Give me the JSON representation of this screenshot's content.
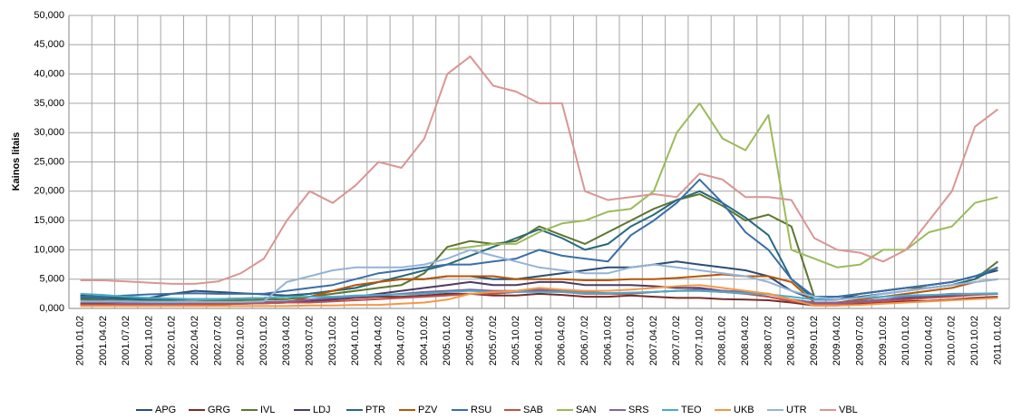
{
  "chart_data": {
    "type": "line",
    "y_label": "Kainos litais",
    "categories": [
      "2001.01.02",
      "2001.04.02",
      "2001.07.02",
      "2001.10.02",
      "2002.01.02",
      "2002.04.02",
      "2002.07.02",
      "2002.10.02",
      "2003.01.02",
      "2003.04.02",
      "2003.07.02",
      "2003.10.02",
      "2004.01.02",
      "2004.04.02",
      "2004.07.02",
      "2004.10.02",
      "2005.01.02",
      "2005.04.02",
      "2005.07.02",
      "2005.10.02",
      "2006.01.02",
      "2006.04.02",
      "2006.07.02",
      "2006.10.02",
      "2007.01.02",
      "2007.04.02",
      "2007.07.02",
      "2007.10.02",
      "2008.01.02",
      "2008.04.02",
      "2008.07.02",
      "2008.10.02",
      "2009.01.02",
      "2009.04.02",
      "2009.07.02",
      "2009.10.02",
      "2010.01.02",
      "2010.04.02",
      "2010.07.02",
      "2010.10.02",
      "2011.01.02"
    ],
    "ylim": [
      0,
      50
    ],
    "yticks": [
      {
        "value": 0,
        "label": "0,000"
      },
      {
        "value": 5,
        "label": "5,000"
      },
      {
        "value": 10,
        "label": "10,000"
      },
      {
        "value": 15,
        "label": "15,000"
      },
      {
        "value": 20,
        "label": "20,000"
      },
      {
        "value": 25,
        "label": "25,000"
      },
      {
        "value": 30,
        "label": "30,000"
      },
      {
        "value": 35,
        "label": "35,000"
      },
      {
        "value": 40,
        "label": "40,000"
      },
      {
        "value": 45,
        "label": "45,000"
      },
      {
        "value": 50,
        "label": "50,000"
      }
    ],
    "grid": true,
    "legend": "bottom",
    "series": [
      {
        "name": "APG",
        "color": "#2C4D75",
        "values": [
          2.2,
          2.0,
          1.8,
          1.8,
          2.5,
          3.0,
          2.8,
          2.6,
          2.4,
          2.2,
          2.5,
          3.0,
          3.5,
          4.5,
          5.0,
          5.0,
          5.5,
          5.5,
          5.0,
          5.0,
          5.5,
          6.0,
          6.5,
          7.0,
          7.0,
          7.5,
          8.0,
          7.5,
          7.0,
          6.5,
          5.5,
          3.0,
          1.5,
          1.5,
          2.5,
          3.0,
          3.5,
          4.0,
          4.5,
          5.5,
          6.5
        ]
      },
      {
        "name": "GRG",
        "color": "#772C2A",
        "values": [
          0.8,
          0.8,
          0.8,
          0.8,
          0.9,
          0.9,
          0.9,
          0.9,
          1.0,
          1.0,
          1.2,
          1.5,
          1.8,
          2.0,
          2.0,
          2.2,
          2.5,
          2.5,
          2.2,
          2.2,
          2.5,
          2.3,
          2.0,
          2.0,
          2.2,
          2.0,
          1.8,
          1.8,
          1.6,
          1.5,
          1.4,
          1.0,
          0.5,
          0.5,
          0.8,
          1.0,
          1.2,
          1.3,
          1.5,
          1.8,
          2.0
        ]
      },
      {
        "name": "IVL",
        "color": "#5F7530",
        "values": [
          1.5,
          1.4,
          1.3,
          1.2,
          1.2,
          1.2,
          1.3,
          1.4,
          1.5,
          1.6,
          2.0,
          2.5,
          3.0,
          3.5,
          4.0,
          6.0,
          10.5,
          11.5,
          11.0,
          11.5,
          14.0,
          12.5,
          11.0,
          13.0,
          15.0,
          17.0,
          18.5,
          19.5,
          17.5,
          15.0,
          16.0,
          14.0,
          2.0,
          2.0,
          2.5,
          3.0,
          3.5,
          3.5,
          4.0,
          5.0,
          8.0
        ]
      },
      {
        "name": "LDJ",
        "color": "#4D3B62",
        "values": [
          0.5,
          0.5,
          0.5,
          0.5,
          0.6,
          0.6,
          0.7,
          0.8,
          0.9,
          1.0,
          1.2,
          1.5,
          2.0,
          2.5,
          3.0,
          3.5,
          4.0,
          4.5,
          4.0,
          4.0,
          4.5,
          4.5,
          4.0,
          4.0,
          4.0,
          3.8,
          3.5,
          3.5,
          3.0,
          2.8,
          2.5,
          1.5,
          1.0,
          1.0,
          1.2,
          1.5,
          1.8,
          2.0,
          2.2,
          2.5,
          2.5
        ]
      },
      {
        "name": "PTR",
        "color": "#276A7C",
        "values": [
          1.8,
          1.7,
          1.6,
          1.5,
          1.5,
          1.6,
          1.6,
          1.7,
          1.8,
          2.0,
          2.5,
          3.0,
          3.5,
          4.5,
          5.5,
          6.5,
          7.5,
          9.0,
          10.5,
          12.0,
          13.5,
          12.0,
          10.0,
          11.0,
          14.0,
          16.0,
          18.5,
          20.0,
          18.0,
          15.5,
          12.5,
          5.0,
          1.5,
          1.5,
          2.0,
          2.5,
          3.0,
          3.5,
          4.0,
          5.0,
          7.0
        ]
      },
      {
        "name": "PZV",
        "color": "#B65708",
        "values": [
          0.5,
          0.5,
          0.5,
          0.5,
          0.6,
          0.6,
          0.7,
          0.8,
          0.9,
          1.0,
          2.0,
          3.0,
          4.0,
          4.5,
          5.0,
          5.0,
          5.5,
          5.5,
          5.5,
          5.0,
          5.0,
          5.0,
          4.8,
          4.8,
          5.0,
          5.0,
          5.2,
          5.5,
          5.8,
          5.5,
          5.5,
          4.5,
          1.0,
          1.0,
          1.5,
          2.0,
          2.5,
          3.0,
          3.5,
          4.5,
          5.0
        ]
      },
      {
        "name": "RSU",
        "color": "#3A6EA8",
        "values": [
          2.0,
          2.0,
          2.2,
          2.4,
          2.5,
          2.6,
          2.5,
          2.5,
          2.5,
          3.0,
          3.5,
          4.0,
          5.0,
          6.0,
          6.5,
          7.0,
          7.5,
          7.5,
          8.0,
          8.5,
          10.0,
          9.0,
          8.5,
          8.0,
          12.5,
          15.0,
          18.0,
          22.0,
          18.0,
          13.0,
          10.0,
          5.0,
          2.0,
          2.0,
          2.5,
          3.0,
          3.5,
          4.0,
          4.5,
          5.5,
          7.0
        ]
      },
      {
        "name": "SAB",
        "color": "#C0504D",
        "values": [
          0.6,
          0.6,
          0.6,
          0.6,
          0.7,
          0.7,
          0.8,
          0.8,
          0.9,
          1.0,
          1.0,
          1.2,
          1.4,
          1.6,
          1.8,
          2.0,
          2.2,
          2.5,
          2.5,
          2.8,
          3.0,
          2.8,
          2.5,
          2.5,
          2.5,
          2.8,
          3.0,
          3.0,
          2.8,
          2.5,
          2.0,
          1.2,
          0.8,
          0.8,
          1.0,
          1.2,
          1.5,
          1.8,
          2.0,
          2.3,
          2.5
        ]
      },
      {
        "name": "SAN",
        "color": "#9BBB59",
        "values": [
          null,
          null,
          null,
          null,
          null,
          null,
          null,
          null,
          null,
          null,
          null,
          null,
          null,
          null,
          null,
          null,
          10.0,
          10.5,
          11.0,
          11.0,
          13.0,
          14.5,
          15.0,
          16.5,
          17.0,
          20.0,
          30.0,
          35.0,
          29.0,
          27.0,
          33.0,
          10.0,
          8.5,
          7.0,
          7.5,
          10.0,
          10.0,
          13.0,
          14.0,
          18.0,
          19.0
        ]
      },
      {
        "name": "SRS",
        "color": "#8064A2",
        "values": [
          1.0,
          1.0,
          0.9,
          0.9,
          0.9,
          1.0,
          1.0,
          1.0,
          1.1,
          1.2,
          1.5,
          1.8,
          2.0,
          2.2,
          2.5,
          2.8,
          3.0,
          3.2,
          3.0,
          3.0,
          3.2,
          3.0,
          2.8,
          2.6,
          2.6,
          2.8,
          3.0,
          3.2,
          3.0,
          2.8,
          2.5,
          1.5,
          1.0,
          1.0,
          1.2,
          1.5,
          2.0,
          2.2,
          2.5,
          2.5,
          2.5
        ]
      },
      {
        "name": "TEO",
        "color": "#4BACC6",
        "values": [
          2.5,
          2.3,
          2.0,
          1.8,
          1.7,
          1.6,
          1.6,
          1.7,
          1.8,
          2.0,
          2.0,
          2.0,
          2.2,
          2.3,
          2.4,
          2.5,
          2.8,
          3.0,
          2.8,
          2.8,
          2.8,
          2.8,
          2.6,
          2.6,
          2.7,
          2.8,
          3.0,
          3.0,
          2.8,
          2.6,
          2.4,
          2.0,
          1.5,
          1.6,
          1.8,
          2.0,
          2.2,
          2.3,
          2.4,
          2.5,
          2.6
        ]
      },
      {
        "name": "UKB",
        "color": "#F79646",
        "values": [
          0.4,
          0.4,
          0.4,
          0.4,
          0.4,
          0.4,
          0.4,
          0.4,
          0.4,
          0.4,
          0.5,
          0.5,
          0.6,
          0.6,
          0.8,
          1.0,
          1.5,
          2.5,
          2.8,
          3.0,
          3.5,
          3.2,
          3.0,
          3.0,
          3.2,
          3.5,
          3.8,
          4.0,
          3.5,
          3.0,
          2.5,
          1.5,
          0.5,
          0.5,
          0.6,
          0.8,
          1.0,
          1.2,
          1.4,
          1.6,
          1.8
        ]
      },
      {
        "name": "UTR",
        "color": "#95B3D7",
        "values": [
          1.2,
          1.2,
          1.2,
          1.1,
          1.1,
          1.1,
          1.1,
          1.1,
          1.2,
          4.5,
          5.5,
          6.5,
          7.0,
          7.0,
          7.0,
          7.5,
          8.5,
          10.0,
          9.0,
          8.0,
          7.0,
          6.5,
          6.0,
          6.0,
          7.0,
          7.5,
          7.0,
          6.5,
          6.0,
          5.5,
          4.5,
          3.0,
          2.0,
          1.5,
          1.8,
          2.5,
          3.0,
          3.5,
          4.0,
          4.5,
          5.0
        ]
      },
      {
        "name": "VBL",
        "color": "#D99694",
        "values": [
          4.8,
          4.8,
          4.6,
          4.4,
          4.2,
          4.2,
          4.6,
          6.0,
          8.5,
          15.0,
          20.0,
          18.0,
          21.0,
          25.0,
          24.0,
          29.0,
          40.0,
          43.0,
          38.0,
          37.0,
          35.0,
          35.0,
          20.0,
          18.5,
          19.0,
          19.5,
          19.0,
          23.0,
          22.0,
          19.0,
          19.0,
          18.5,
          12.0,
          10.0,
          9.5,
          8.0,
          10.0,
          15.0,
          20.0,
          31.0,
          34.0
        ]
      }
    ]
  }
}
